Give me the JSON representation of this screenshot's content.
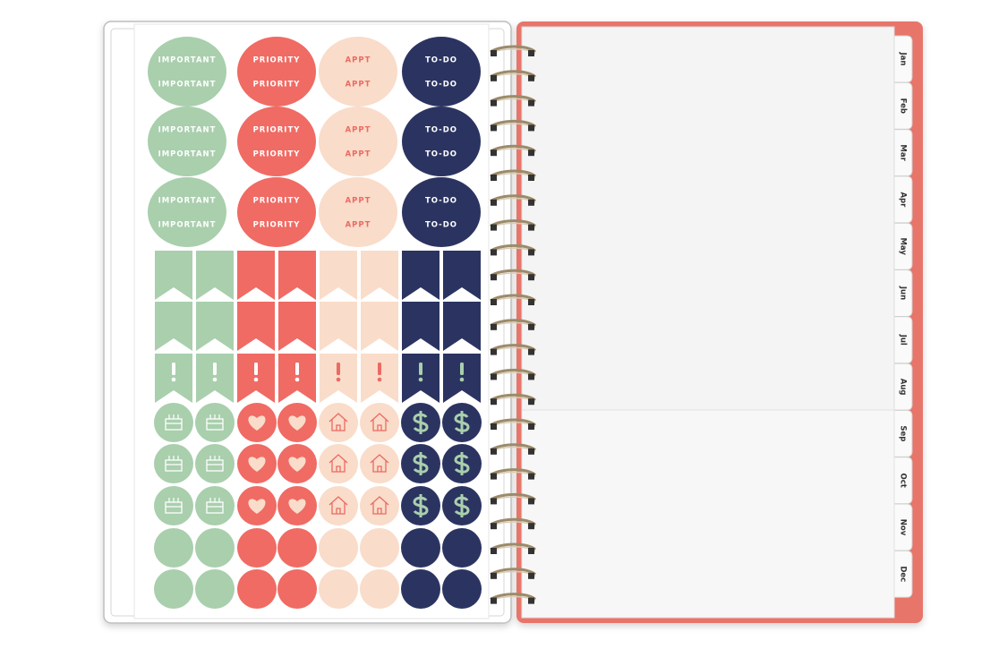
{
  "sticker_labels": [
    "IMPORTANT",
    "PRIORITY",
    "APPT",
    "TO-DO"
  ],
  "tabs": [
    "Jan",
    "Feb",
    "Mar",
    "Apr",
    "May",
    "Jun",
    "Jul",
    "Aug",
    "Sep",
    "Oct",
    "Nov",
    "Dec"
  ]
}
